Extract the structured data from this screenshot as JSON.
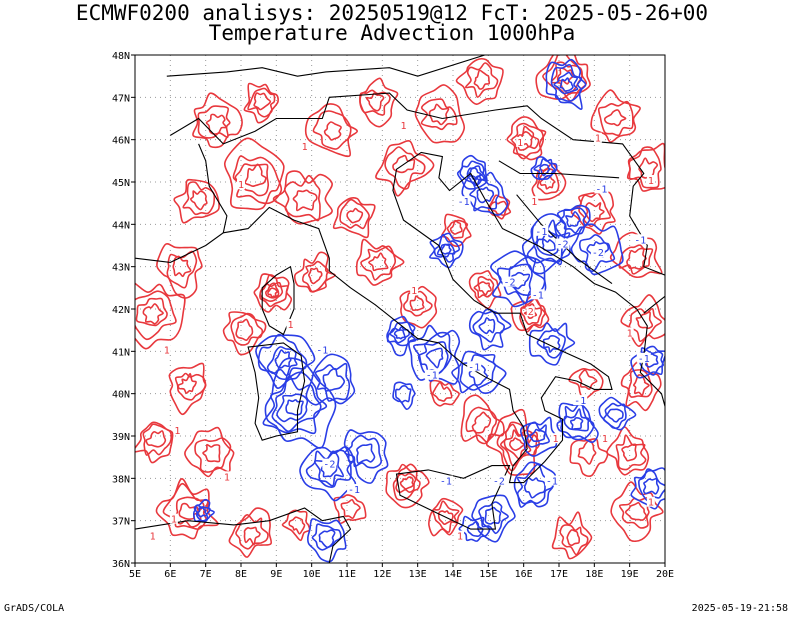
{
  "header": {
    "line1": "ECMWF0200 analisys: 20250519@12 FcT: 2025-05-26+00",
    "line2": "Temperature Advection 1000hPa"
  },
  "map": {
    "projection": "lat-lon",
    "lon_range": [
      5,
      20
    ],
    "lat_range": [
      36,
      48
    ],
    "lon_labels": [
      "5E",
      "6E",
      "7E",
      "8E",
      "9E",
      "10E",
      "11E",
      "12E",
      "13E",
      "14E",
      "15E",
      "16E",
      "17E",
      "18E",
      "19E",
      "20E"
    ],
    "lat_labels": [
      "36N",
      "37N",
      "38N",
      "39N",
      "40N",
      "41N",
      "42N",
      "43N",
      "44N",
      "45N",
      "46N",
      "47N",
      "48N"
    ],
    "grid": "dotted",
    "contour_colors": {
      "warm": "#e8383d",
      "cold": "#2a3ee6",
      "coast": "#000000"
    },
    "contour_labels": [
      {
        "text": "1",
        "lon": 5.9,
        "lat": 41.0,
        "type": "warm"
      },
      {
        "text": "-1",
        "lon": 10.3,
        "lat": 41.0,
        "type": "cold"
      },
      {
        "text": "-2",
        "lon": 10.5,
        "lat": 38.3,
        "type": "cold"
      },
      {
        "text": "-1",
        "lon": 11.2,
        "lat": 37.7,
        "type": "cold"
      },
      {
        "text": "-1",
        "lon": 13.8,
        "lat": 37.9,
        "type": "cold"
      },
      {
        "text": "-2",
        "lon": 15.3,
        "lat": 37.9,
        "type": "cold"
      },
      {
        "text": "-1",
        "lon": 16.8,
        "lat": 37.9,
        "type": "cold"
      },
      {
        "text": "1",
        "lon": 16.9,
        "lat": 38.9,
        "type": "warm"
      },
      {
        "text": "-1",
        "lon": 17.6,
        "lat": 39.8,
        "type": "cold"
      },
      {
        "text": "-1",
        "lon": 19.4,
        "lat": 40.8,
        "type": "cold"
      },
      {
        "text": "-1",
        "lon": 13.4,
        "lat": 40.4,
        "type": "cold"
      },
      {
        "text": "-1",
        "lon": 14.6,
        "lat": 40.6,
        "type": "cold"
      },
      {
        "text": "-2",
        "lon": 15.6,
        "lat": 42.6,
        "type": "cold"
      },
      {
        "text": "-1",
        "lon": 16.5,
        "lat": 43.8,
        "type": "cold"
      },
      {
        "text": "-2",
        "lon": 17.1,
        "lat": 43.5,
        "type": "cold"
      },
      {
        "text": "-1",
        "lon": 19.3,
        "lat": 43.6,
        "type": "cold"
      },
      {
        "text": "-1",
        "lon": 16.4,
        "lat": 42.3,
        "type": "cold"
      },
      {
        "text": "-2",
        "lon": 18.1,
        "lat": 43.3,
        "type": "cold"
      },
      {
        "text": "-1",
        "lon": 14.3,
        "lat": 44.5,
        "type": "cold"
      },
      {
        "text": "-1",
        "lon": 18.2,
        "lat": 44.8,
        "type": "cold"
      },
      {
        "text": "2",
        "lon": 16.2,
        "lat": 41.9,
        "type": "warm"
      },
      {
        "text": "1",
        "lon": 6.1,
        "lat": 37.0,
        "type": "warm"
      },
      {
        "text": "1",
        "lon": 9.4,
        "lat": 41.6,
        "type": "warm"
      },
      {
        "text": "1",
        "lon": 7.6,
        "lat": 38.0,
        "type": "warm"
      },
      {
        "text": "1",
        "lon": 6.2,
        "lat": 39.1,
        "type": "warm"
      },
      {
        "text": "1",
        "lon": 5.5,
        "lat": 36.6,
        "type": "warm"
      },
      {
        "text": "1",
        "lon": 14.2,
        "lat": 36.6,
        "type": "warm"
      },
      {
        "text": "1",
        "lon": 8.0,
        "lat": 44.9,
        "type": "warm"
      },
      {
        "text": "1",
        "lon": 9.8,
        "lat": 45.8,
        "type": "warm"
      },
      {
        "text": "1",
        "lon": 12.6,
        "lat": 46.3,
        "type": "warm"
      },
      {
        "text": "1",
        "lon": 19.0,
        "lat": 41.4,
        "type": "warm"
      },
      {
        "text": "1",
        "lon": 16.3,
        "lat": 44.5,
        "type": "warm"
      },
      {
        "text": "1",
        "lon": 18.1,
        "lat": 46.0,
        "type": "warm"
      },
      {
        "text": "1",
        "lon": 19.6,
        "lat": 45.0,
        "type": "warm"
      },
      {
        "text": "1",
        "lon": 15.9,
        "lat": 45.9,
        "type": "warm"
      },
      {
        "text": "1",
        "lon": 12.9,
        "lat": 42.4,
        "type": "warm"
      },
      {
        "text": "1",
        "lon": 18.3,
        "lat": 38.9,
        "type": "warm"
      },
      {
        "text": "1",
        "lon": 19.6,
        "lat": 37.4,
        "type": "warm"
      }
    ]
  },
  "footer": {
    "left": "GrADS/COLA",
    "right": "2025-05-19-21:58"
  }
}
